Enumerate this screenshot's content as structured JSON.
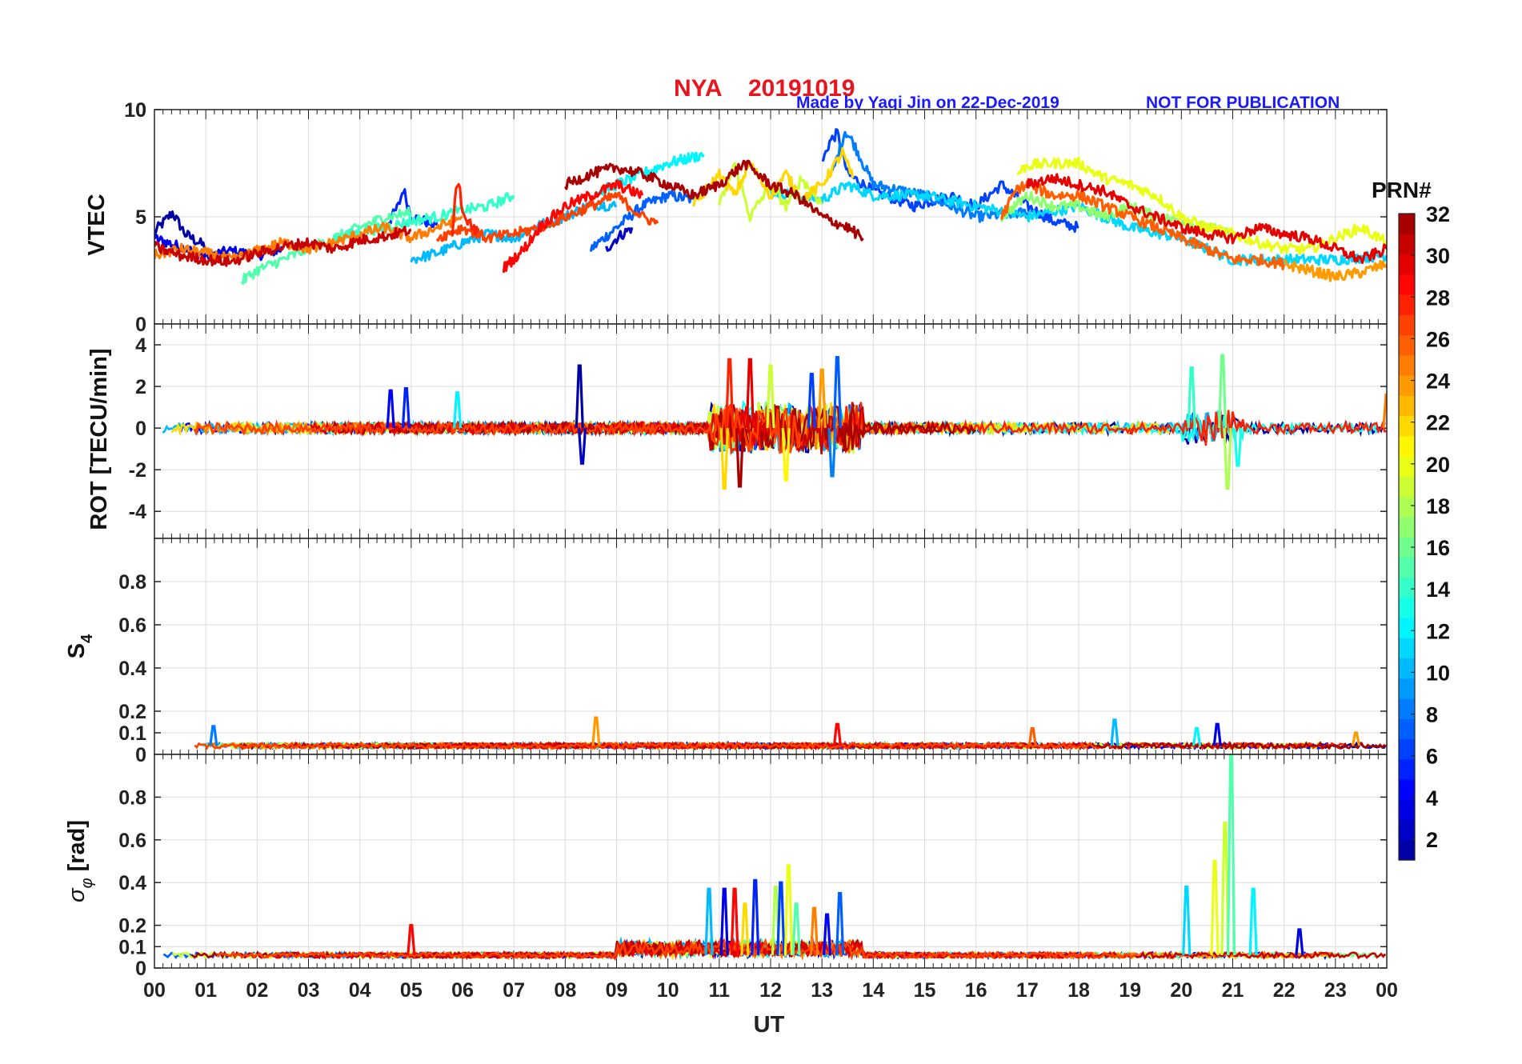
{
  "header": {
    "station": "NYA",
    "date": "20191019",
    "credit": "Made by Yaqi Jin on 22-Dec-2019",
    "notice": "NOT FOR PUBLICATION"
  },
  "colors": {
    "title": "#e8141e",
    "credit": "#1a1aff",
    "grid": "#dddddd",
    "colormap": "jet"
  },
  "colorbar": {
    "label": "PRN#",
    "range": [
      1,
      32
    ],
    "ticks": [
      "2",
      "4",
      "6",
      "8",
      "10",
      "12",
      "14",
      "16",
      "18",
      "20",
      "22",
      "24",
      "26",
      "28",
      "30",
      "32"
    ]
  },
  "chart_data": [
    {
      "type": "line",
      "panel": "vtec",
      "ylabel": "VTEC",
      "ylim": [
        0,
        10
      ],
      "yticks": [
        "0",
        "5",
        "10"
      ],
      "xlim": [
        0,
        24
      ],
      "grid": true,
      "series": [
        {
          "prn": 1,
          "x": [
            0.0,
            0.2,
            0.35,
            0.6,
            1.0
          ],
          "values": [
            4.3,
            4.8,
            5.2,
            4.2,
            3.6
          ]
        },
        {
          "prn": 3,
          "x": [
            0.0,
            0.5,
            1.0,
            1.5,
            2.0,
            2.5
          ],
          "values": [
            4.0,
            3.6,
            3.2,
            3.4,
            3.2,
            3.5
          ]
        },
        {
          "prn": 5,
          "x": [
            4.5,
            4.75,
            4.85,
            5.0,
            5.5
          ],
          "values": [
            4.5,
            5.5,
            6.3,
            5.0,
            4.6
          ]
        },
        {
          "prn": 7,
          "x": [
            8.5,
            9.0,
            9.5,
            10.0,
            10.5
          ],
          "values": [
            3.5,
            4.5,
            5.5,
            6.0,
            5.8
          ]
        },
        {
          "prn": 2,
          "x": [
            8.8,
            9.0,
            9.3
          ],
          "values": [
            3.5,
            4.0,
            4.5
          ]
        },
        {
          "prn": 6,
          "x": [
            13.0,
            13.15,
            13.3,
            13.5,
            14.0,
            14.8,
            15.5,
            16.0,
            16.5,
            17.0,
            17.5,
            18.0
          ],
          "values": [
            7.5,
            8.5,
            8.9,
            7.0,
            6.2,
            5.5,
            6.0,
            5.5,
            6.5,
            5.5,
            4.8,
            4.5
          ]
        },
        {
          "prn": 8,
          "x": [
            13.2,
            13.45,
            13.6,
            14.0,
            15.0,
            16.0,
            17.0
          ],
          "values": [
            7.0,
            9.0,
            8.5,
            6.5,
            6.0,
            5.0,
            5.2
          ]
        },
        {
          "prn": 10,
          "x": [
            5.0,
            5.5,
            6.0,
            6.5,
            7.0,
            7.5,
            8.0,
            8.5,
            9.0
          ],
          "values": [
            3.0,
            3.3,
            3.8,
            4.2,
            4.0,
            4.6,
            5.0,
            5.6,
            5.5
          ]
        },
        {
          "prn": 11,
          "x": [
            12.0,
            12.5,
            13.0,
            13.5,
            14.0,
            15.0,
            16.0,
            17.0,
            18.0,
            19.0,
            20.0,
            21.0,
            22.0,
            23.0,
            24.0
          ],
          "values": [
            6.2,
            6.0,
            5.8,
            6.5,
            6.0,
            6.0,
            5.5,
            5.0,
            5.5,
            4.5,
            4.0,
            3.0,
            3.0,
            3.0,
            3.2
          ]
        },
        {
          "prn": 12,
          "x": [
            8.5,
            9.0,
            9.5,
            10.0,
            10.7
          ],
          "values": [
            6.0,
            6.5,
            7.0,
            7.5,
            7.9
          ]
        },
        {
          "prn": 15,
          "x": [
            1.7,
            2.0,
            2.5,
            3.0,
            3.5,
            4.0,
            4.5,
            5.0
          ],
          "values": [
            2.0,
            2.5,
            3.0,
            3.5,
            4.0,
            4.5,
            5.0,
            5.2
          ]
        },
        {
          "prn": 14,
          "x": [
            3.5,
            4.0,
            4.5,
            5.0,
            5.5,
            6.0,
            6.5,
            7.0
          ],
          "values": [
            4.0,
            4.3,
            4.5,
            4.8,
            5.0,
            5.3,
            5.5,
            6.0
          ]
        },
        {
          "prn": 17,
          "x": [
            16.5,
            17.0,
            17.5,
            18.0,
            18.5,
            19.0,
            19.5,
            20.0,
            20.5,
            21.0
          ],
          "values": [
            5.0,
            6.0,
            5.5,
            5.5,
            5.0,
            5.5,
            5.0,
            4.8,
            4.5,
            4.2
          ]
        },
        {
          "prn": 19,
          "x": [
            11.0,
            11.3,
            11.6,
            12.0,
            12.3,
            12.6,
            13.0
          ],
          "values": [
            5.5,
            7.5,
            5.0,
            6.5,
            5.5,
            6.8,
            5.6
          ]
        },
        {
          "prn": 20,
          "x": [
            16.8,
            17.0,
            17.5,
            18.0,
            18.5,
            19.0,
            19.5,
            20.0,
            20.5,
            21.0,
            21.5,
            22.0,
            22.5,
            23.0,
            23.5,
            24.0
          ],
          "values": [
            7.0,
            7.4,
            7.5,
            7.5,
            6.8,
            6.5,
            6.0,
            5.0,
            4.5,
            4.2,
            3.8,
            3.5,
            3.5,
            4.0,
            4.5,
            3.8
          ]
        },
        {
          "prn": 22,
          "x": [
            10.5,
            11.0,
            11.3,
            11.6,
            12.0,
            12.3,
            12.6,
            13.0,
            13.4,
            13.6
          ],
          "values": [
            5.5,
            7.0,
            6.0,
            7.5,
            6.0,
            7.0,
            5.8,
            6.5,
            8.0,
            6.8
          ]
        },
        {
          "prn": 24,
          "x": [
            22.0,
            22.5,
            23.0,
            23.5,
            24.0
          ],
          "values": [
            2.8,
            2.5,
            2.2,
            2.4,
            2.8
          ]
        },
        {
          "prn": 25,
          "x": [
            0.0,
            0.5,
            1.0,
            1.5,
            2.0,
            2.5,
            3.0,
            3.5,
            4.0,
            4.5,
            5.0,
            5.5,
            6.0
          ],
          "values": [
            3.2,
            3.5,
            3.3,
            3.0,
            3.4,
            3.8,
            3.5,
            3.8,
            4.2,
            4.5,
            4.0,
            4.5,
            5.0
          ]
        },
        {
          "prn": 26,
          "x": [
            16.5,
            16.8,
            17.0,
            17.5,
            18.0,
            18.5,
            19.0,
            19.5,
            20.0,
            20.5,
            21.0,
            21.5,
            22.0
          ],
          "values": [
            5.0,
            6.3,
            6.5,
            6.0,
            6.0,
            5.5,
            5.0,
            4.5,
            4.0,
            3.5,
            3.0,
            3.0,
            2.8
          ]
        },
        {
          "prn": 27,
          "x": [
            5.5,
            6.0,
            6.5,
            7.0,
            7.5,
            8.0,
            8.5,
            9.0,
            9.5,
            9.8
          ],
          "values": [
            4.0,
            4.5,
            4.0,
            4.2,
            4.5,
            5.0,
            5.5,
            6.0,
            5.0,
            4.7
          ]
        },
        {
          "prn": 28,
          "x": [
            5.8,
            5.85,
            5.95,
            6.0,
            6.3
          ],
          "values": [
            4.0,
            6.0,
            6.5,
            5.0,
            4.3
          ]
        },
        {
          "prn": 29,
          "x": [
            6.8,
            7.2,
            7.5,
            8.0,
            8.5,
            9.0,
            9.5
          ],
          "values": [
            2.6,
            3.5,
            4.5,
            5.5,
            6.0,
            6.5,
            6.0
          ]
        },
        {
          "prn": 30,
          "x": [
            17.0,
            17.5,
            18.0,
            18.5,
            19.0,
            19.5,
            20.0,
            20.5,
            21.0,
            21.5,
            22.0,
            22.5,
            23.0,
            23.5,
            24.0
          ],
          "values": [
            6.5,
            6.8,
            6.5,
            6.2,
            5.5,
            5.0,
            4.5,
            4.2,
            4.0,
            4.5,
            4.2,
            4.0,
            3.5,
            3.0,
            3.5
          ]
        },
        {
          "prn": 32,
          "x": [
            8.0,
            8.5,
            9.0,
            9.5,
            10.0,
            10.5,
            11.0,
            11.5,
            12.0,
            12.5,
            13.0,
            13.5,
            13.8
          ],
          "values": [
            6.5,
            7.0,
            7.3,
            7.0,
            6.5,
            6.0,
            6.5,
            7.5,
            6.5,
            6.0,
            5.0,
            4.5,
            4.0
          ]
        },
        {
          "prn": 31,
          "x": [
            0.0,
            0.5,
            1.0,
            1.5,
            2.0,
            2.5,
            3.0,
            3.5,
            4.0,
            4.5,
            5.0
          ],
          "values": [
            3.6,
            3.2,
            3.0,
            2.9,
            3.3,
            3.6,
            3.8,
            3.5,
            3.9,
            4.1,
            4.4
          ]
        }
      ]
    },
    {
      "type": "line",
      "panel": "rot",
      "ylabel": "ROT [TECU/min]",
      "ylim": [
        -5.3,
        5
      ],
      "yticks": [
        "-4",
        "-2",
        "0",
        "2",
        "4"
      ],
      "xlim": [
        0,
        24
      ],
      "grid": true,
      "baseline": 0,
      "spikes": [
        {
          "prn": 1,
          "x": 8.28,
          "value": 3.0
        },
        {
          "prn": 2,
          "x": 8.33,
          "value": -1.7
        },
        {
          "prn": 5,
          "x": 4.9,
          "value": 1.9
        },
        {
          "prn": 4,
          "x": 4.6,
          "value": 1.8
        },
        {
          "prn": 12,
          "x": 5.9,
          "value": 1.7
        },
        {
          "prn": 28,
          "x": 11.2,
          "value": 3.3
        },
        {
          "prn": 32,
          "x": 11.4,
          "value": -2.8
        },
        {
          "prn": 30,
          "x": 11.6,
          "value": 3.3
        },
        {
          "prn": 22,
          "x": 11.1,
          "value": -2.9
        },
        {
          "prn": 19,
          "x": 12.0,
          "value": 3.0
        },
        {
          "prn": 21,
          "x": 12.3,
          "value": -2.5
        },
        {
          "prn": 6,
          "x": 12.8,
          "value": 2.6
        },
        {
          "prn": 7,
          "x": 13.3,
          "value": 3.4
        },
        {
          "prn": 8,
          "x": 13.2,
          "value": -2.3
        },
        {
          "prn": 24,
          "x": 13.0,
          "value": 2.8
        },
        {
          "prn": 16,
          "x": 20.8,
          "value": 3.5
        },
        {
          "prn": 14,
          "x": 20.2,
          "value": 2.9
        },
        {
          "prn": 18,
          "x": 20.9,
          "value": -2.9
        },
        {
          "prn": 13,
          "x": 21.1,
          "value": -1.8
        },
        {
          "prn": 25,
          "x": 24.0,
          "value": 1.6
        }
      ]
    },
    {
      "type": "line",
      "panel": "s4",
      "ylabel": "S4",
      "ylim": [
        0,
        1
      ],
      "yticks": [
        "0",
        "0.1",
        "0.2",
        "0.4",
        "0.6",
        "0.8"
      ],
      "xlim": [
        0,
        24
      ],
      "grid": true,
      "baseline": 0.04,
      "spikes": [
        {
          "prn": 8,
          "x": 1.15,
          "value": 0.13
        },
        {
          "prn": 24,
          "x": 8.6,
          "value": 0.17
        },
        {
          "prn": 29,
          "x": 13.3,
          "value": 0.14
        },
        {
          "prn": 26,
          "x": 17.1,
          "value": 0.12
        },
        {
          "prn": 10,
          "x": 18.7,
          "value": 0.16
        },
        {
          "prn": 3,
          "x": 20.7,
          "value": 0.14
        },
        {
          "prn": 12,
          "x": 20.3,
          "value": 0.12
        },
        {
          "prn": 24,
          "x": 23.4,
          "value": 0.1
        }
      ]
    },
    {
      "type": "line",
      "panel": "sigma_phi",
      "ylabel": "σφ [rad]",
      "ylim": [
        0,
        1
      ],
      "yticks": [
        "0",
        "0.1",
        "0.2",
        "0.4",
        "0.6",
        "0.8"
      ],
      "xlim": [
        0,
        24
      ],
      "grid": true,
      "baseline": 0.06,
      "spikes": [
        {
          "prn": 29,
          "x": 5.0,
          "value": 0.2
        },
        {
          "prn": 10,
          "x": 10.8,
          "value": 0.37
        },
        {
          "prn": 3,
          "x": 11.1,
          "value": 0.37
        },
        {
          "prn": 29,
          "x": 11.3,
          "value": 0.37
        },
        {
          "prn": 5,
          "x": 11.7,
          "value": 0.41
        },
        {
          "prn": 22,
          "x": 11.5,
          "value": 0.3
        },
        {
          "prn": 18,
          "x": 12.1,
          "value": 0.38
        },
        {
          "prn": 6,
          "x": 12.2,
          "value": 0.4
        },
        {
          "prn": 20,
          "x": 12.35,
          "value": 0.48
        },
        {
          "prn": 15,
          "x": 12.5,
          "value": 0.3
        },
        {
          "prn": 25,
          "x": 12.85,
          "value": 0.28
        },
        {
          "prn": 4,
          "x": 13.1,
          "value": 0.25
        },
        {
          "prn": 7,
          "x": 13.35,
          "value": 0.35
        },
        {
          "prn": 11,
          "x": 20.1,
          "value": 0.38
        },
        {
          "prn": 20,
          "x": 20.65,
          "value": 0.5
        },
        {
          "prn": 19,
          "x": 20.85,
          "value": 0.68
        },
        {
          "prn": 15,
          "x": 20.97,
          "value": 1.0
        },
        {
          "prn": 12,
          "x": 21.4,
          "value": 0.37
        },
        {
          "prn": 3,
          "x": 22.3,
          "value": 0.18
        }
      ]
    }
  ],
  "xaxis": {
    "label": "UT",
    "ticks": [
      "00",
      "01",
      "02",
      "03",
      "04",
      "05",
      "06",
      "07",
      "08",
      "09",
      "10",
      "11",
      "12",
      "13",
      "14",
      "15",
      "16",
      "17",
      "18",
      "19",
      "20",
      "21",
      "22",
      "23",
      "00"
    ]
  }
}
